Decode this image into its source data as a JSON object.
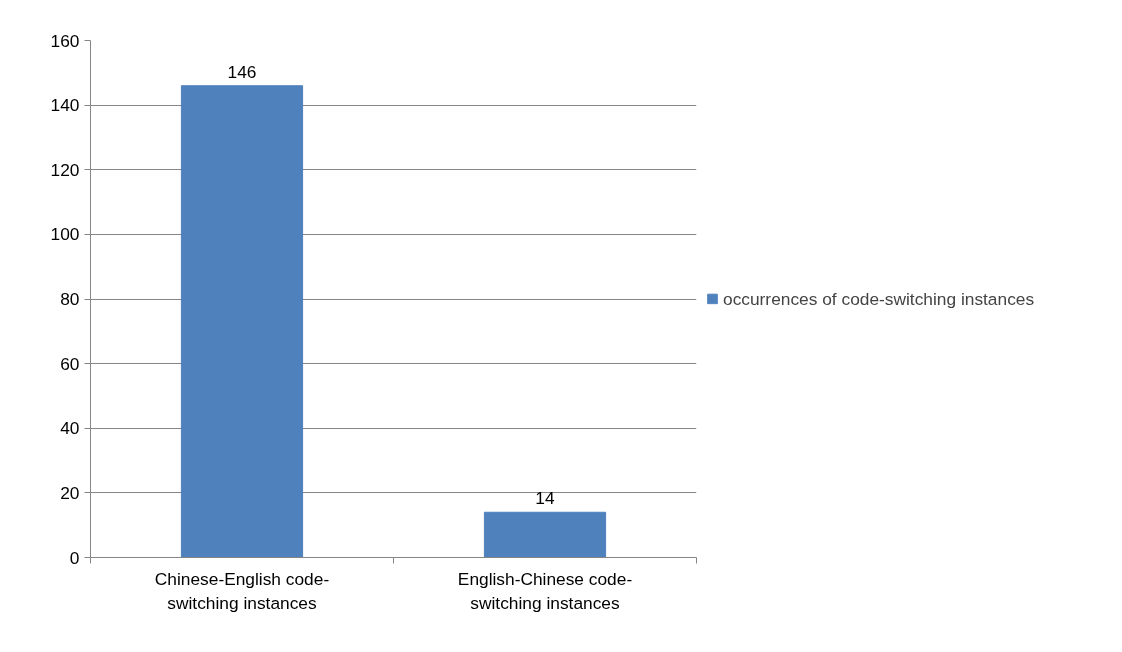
{
  "chart_data": {
    "type": "bar",
    "categories": [
      "Chinese-English code-switching instances",
      "English-Chinese code-switching instances"
    ],
    "series": [
      {
        "name": "occurrences of code-switching instances",
        "color": "#4f81bd",
        "values": [
          146,
          14
        ]
      }
    ],
    "ylim": [
      0,
      160
    ],
    "yticks": [
      0,
      20,
      40,
      60,
      80,
      100,
      120,
      140,
      160
    ],
    "grid": "y",
    "legend": "right",
    "data_labels": true
  }
}
